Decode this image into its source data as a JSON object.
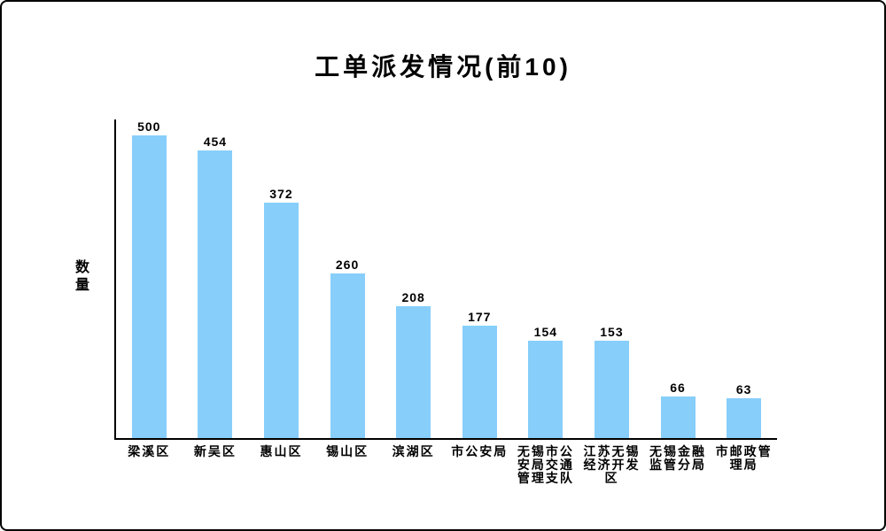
{
  "chart_data": {
    "type": "bar",
    "title": "工单派发情况(前10)",
    "xlabel": "",
    "ylabel": "数量",
    "categories": [
      "梁溪区",
      "新吴区",
      "惠山区",
      "锡山区",
      "滨湖区",
      "市公安局",
      "无锡市公安局交通管理支队",
      "江苏无锡经济开发区",
      "无锡金融监管分局",
      "市邮政管理局"
    ],
    "values": [
      500,
      454,
      372,
      260,
      208,
      177,
      154,
      153,
      66,
      63
    ],
    "ylim": [
      0,
      500
    ],
    "grid": false,
    "legend": false,
    "value_labels_shown": true,
    "bar_color": "#87CEFA",
    "axis_color": "#000000",
    "text_color": "#000000",
    "background_color": "#ffffff"
  }
}
